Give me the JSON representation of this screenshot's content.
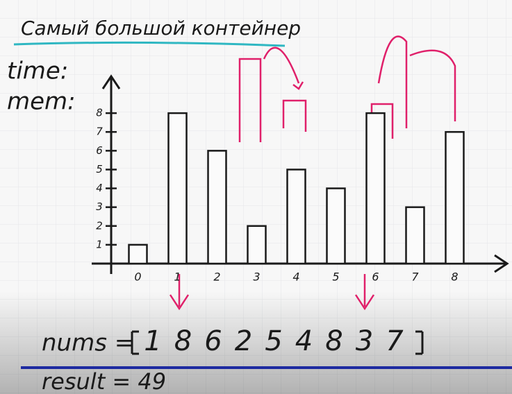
{
  "chart_data": {
    "type": "bar",
    "title": "Самый большой контейнер",
    "annotations": {
      "time": "time:",
      "mem": "mem:",
      "nums_label": "nums =",
      "result": "result = 49"
    },
    "categories": [
      "0",
      "1",
      "2",
      "3",
      "4",
      "5",
      "6",
      "7",
      "8"
    ],
    "values": [
      1,
      8,
      6,
      2,
      5,
      4,
      8,
      3,
      7
    ],
    "color": "#1a1a1a",
    "ylim": [
      0,
      9
    ],
    "yticks": [
      1,
      2,
      3,
      4,
      5,
      6,
      7,
      8
    ]
  }
}
